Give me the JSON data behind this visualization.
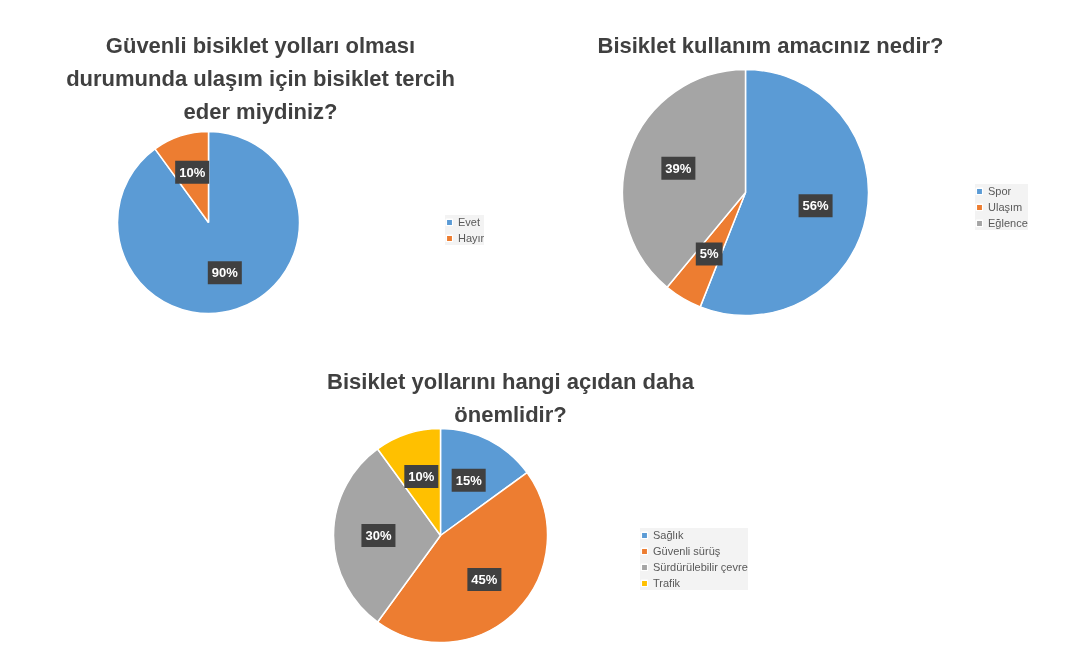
{
  "chart_data": [
    {
      "type": "pie",
      "title": "Güvenli bisiklet yolları olması durumunda ulaşım için bisiklet tercih eder miydiniz?",
      "categories": [
        "Evet",
        "Hayır"
      ],
      "values": [
        90,
        10
      ],
      "colors": [
        "#5b9bd5",
        "#ed7d31"
      ],
      "value_labels": [
        "90%",
        "10%"
      ],
      "legend": "right"
    },
    {
      "type": "pie",
      "title": "Bisiklet kullanım amacınız nedir?",
      "categories": [
        "Spor",
        "Ulaşım",
        "Eğlence"
      ],
      "values": [
        56,
        5,
        39
      ],
      "colors": [
        "#5b9bd5",
        "#ed7d31",
        "#a5a5a5"
      ],
      "value_labels": [
        "56%",
        "5%",
        "39%"
      ],
      "legend": "right"
    },
    {
      "type": "pie",
      "title": "Bisiklet yollarını hangi açıdan daha önemlidir?",
      "categories": [
        "Sağlık",
        "Güvenli sürüş",
        "Sürdürülebilir çevre",
        "Trafik"
      ],
      "values": [
        15,
        45,
        30,
        10
      ],
      "colors": [
        "#5b9bd5",
        "#ed7d31",
        "#a5a5a5",
        "#ffc000"
      ],
      "value_labels": [
        "15%",
        "45%",
        "30%",
        "10%"
      ],
      "legend": "right"
    }
  ]
}
